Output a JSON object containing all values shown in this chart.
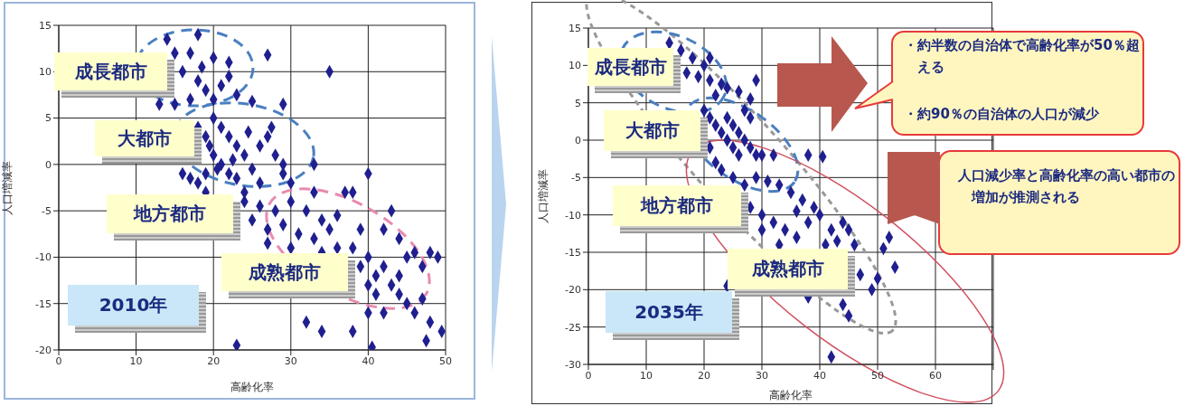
{
  "chart_data": [
    {
      "type": "scatter",
      "xlabel": "高齢化率",
      "ylabel": "人口増減率",
      "xlim": [
        0,
        50
      ],
      "ylim": [
        -20,
        15
      ],
      "xticks": [
        0,
        10,
        20,
        30,
        40,
        50
      ],
      "yticks": [
        -20,
        -15,
        -10,
        -5,
        0,
        5,
        10,
        15
      ],
      "grid": true,
      "marker": "diamond",
      "annotations": [
        "成長都市",
        "大都市",
        "地方都市",
        "成熟都市",
        "2010年"
      ],
      "series": [
        {
          "color": "#1f1f8f",
          "x": [
            14,
            18,
            15,
            17,
            20,
            22,
            27,
            16,
            18,
            19,
            21,
            23,
            25,
            13,
            17,
            20,
            29,
            15,
            22,
            18.5,
            35,
            18,
            19,
            20,
            21,
            22,
            23,
            24,
            20,
            21,
            22,
            23,
            25,
            26,
            27,
            28,
            29,
            26,
            24,
            19,
            18,
            17,
            19.5,
            20.5,
            22.5,
            27.5,
            29,
            24.5,
            16,
            19,
            24,
            26,
            28,
            30,
            32,
            34,
            25,
            27,
            29,
            31,
            33,
            35,
            36,
            30,
            33,
            37,
            27,
            30,
            34,
            36,
            38,
            39,
            40,
            41,
            42,
            43,
            44,
            45,
            46,
            48,
            49,
            47,
            44,
            45,
            41,
            40,
            39,
            42,
            44,
            43,
            40,
            38,
            33,
            40,
            46,
            47,
            48,
            42,
            32,
            34,
            38,
            40.5,
            49.5,
            47.5,
            23
          ],
          "values": [
            13.5,
            14,
            12,
            12,
            11.5,
            11,
            11.8,
            10,
            9,
            8,
            8.5,
            7.5,
            6.8,
            6.5,
            7,
            7,
            6.5,
            6.5,
            9.5,
            10.5,
            10,
            4,
            3,
            5,
            4,
            3,
            2,
            1,
            1,
            0,
            -1,
            -1.5,
            -0.5,
            2,
            3,
            1,
            -1,
            -2,
            -3,
            -1,
            -2,
            -1.5,
            2,
            -0.5,
            0.5,
            4,
            0,
            3.5,
            -1,
            -3,
            -4,
            -4.5,
            -5,
            -4,
            -5,
            -6,
            -6,
            -7,
            -6.5,
            -7.5,
            -8,
            -7,
            -5.5,
            -2,
            -3,
            -3,
            -8.5,
            -9,
            -9.5,
            -9,
            -9,
            -11,
            -10,
            -12,
            -11,
            -13,
            -12,
            -10,
            -9.5,
            -9.5,
            -10,
            -11,
            -14,
            -15,
            -14,
            -13,
            -7,
            -7,
            -8,
            -5,
            -1,
            -3,
            0,
            -16,
            -16,
            -14.5,
            -17,
            -16,
            -17,
            -18,
            -18,
            -19.7,
            -18,
            -19,
            -19.5
          ]
        }
      ]
    },
    {
      "type": "scatter",
      "xlabel": "高齢化率",
      "ylabel": "人口増減率",
      "xlim": [
        0,
        70
      ],
      "ylim": [
        -30,
        15
      ],
      "xticks": [
        0,
        10,
        20,
        30,
        40,
        50,
        60,
        {
          "value": 70,
          "label": null
        }
      ],
      "yticks": [
        -30,
        -25,
        -20,
        -15,
        -10,
        -5,
        0,
        5,
        10,
        15
      ],
      "grid": true,
      "marker": "diamond",
      "annotations": [
        "成長都市",
        "大都市",
        "地方都市",
        "成熟都市",
        "2035年",
        "・約半数の自治体で高齢化率が50％超える",
        "・約90％の自治体の人口が減少",
        "人口減少率と高齢化率の高い都市の増加が推測される"
      ],
      "series": [
        {
          "color": "#1f1f8f",
          "x": [
            14,
            16,
            18,
            20,
            17,
            19,
            21,
            23,
            22,
            24,
            26,
            28,
            29,
            21,
            20,
            21,
            22,
            23,
            24,
            25,
            26,
            21,
            22,
            23,
            24,
            25,
            26,
            27,
            28,
            29,
            30,
            27,
            28,
            32,
            38,
            40.5,
            25,
            27,
            29,
            31,
            33,
            35,
            37,
            39,
            28,
            30,
            32,
            34,
            36,
            38,
            40,
            42,
            44,
            41,
            43,
            45,
            46,
            30,
            33,
            36,
            47,
            50,
            53,
            51,
            52,
            49,
            44,
            45,
            42,
            24,
            38
          ],
          "values": [
            13,
            12,
            11,
            10,
            9,
            8.5,
            8,
            7.5,
            6,
            7,
            6.5,
            5.5,
            8,
            11,
            4,
            3,
            2,
            1,
            0,
            -1,
            -2,
            -1,
            -3,
            -4,
            3,
            2,
            1,
            0,
            -1,
            -2,
            -2,
            4,
            3,
            -2,
            -2,
            -2.2,
            -5,
            -6,
            -5,
            -5.5,
            -6,
            -7,
            -8,
            -9,
            -9,
            -10,
            -11,
            -12,
            -13,
            -11,
            -10,
            -12,
            -11,
            -14,
            -13.5,
            -12,
            -14,
            -12,
            -14,
            -9.5,
            -18,
            -18.5,
            -17,
            -14.5,
            -13,
            -20,
            -22,
            -23.5,
            -29,
            -19.5,
            -21
          ]
        }
      ]
    }
  ]
}
